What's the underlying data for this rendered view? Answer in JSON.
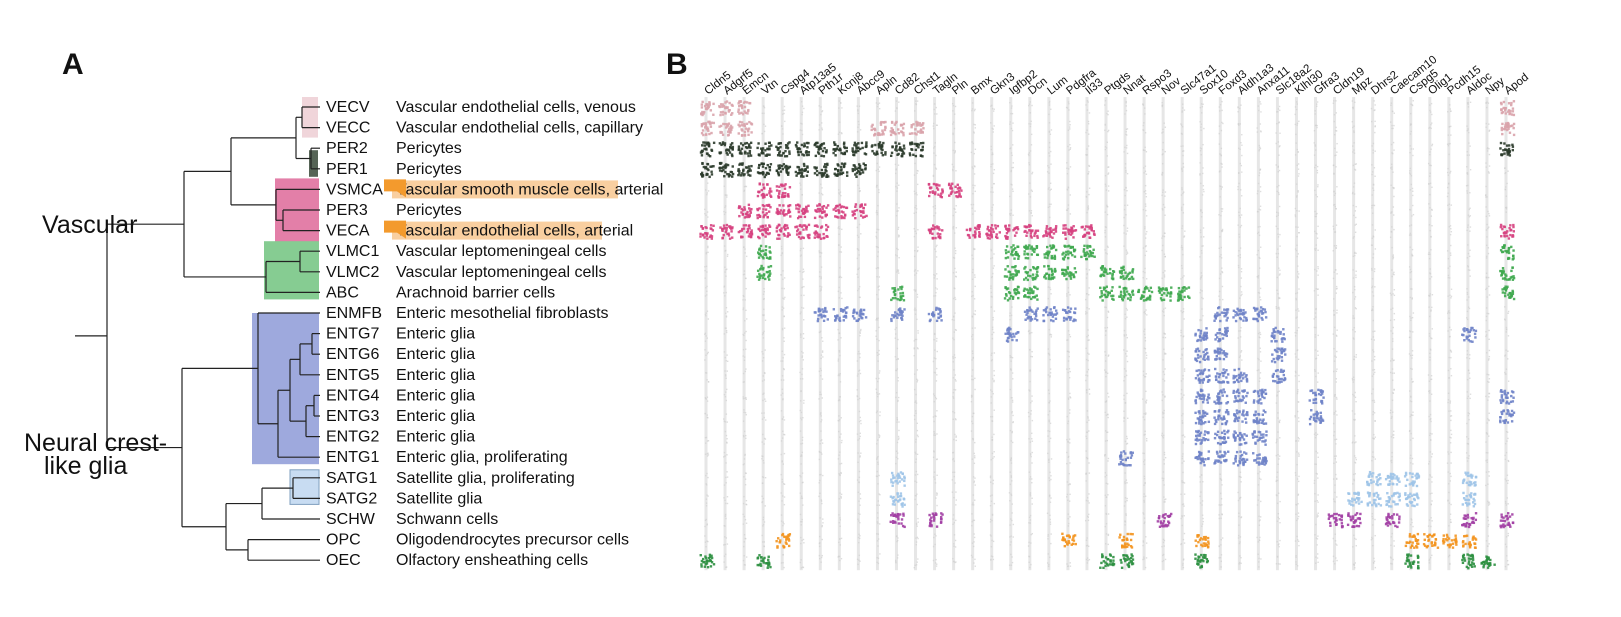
{
  "panels": {
    "a": "A",
    "b": "B"
  },
  "groups": [
    {
      "id": "vascular",
      "lines": [
        "Vascular"
      ]
    },
    {
      "id": "neural",
      "lines": [
        "Neural crest-",
        "like glia"
      ]
    }
  ],
  "colors": {
    "venous_capillary": "#d9a3ab",
    "pericyte_dark": "#2a3a2a",
    "arterial": "#d6417f",
    "leptomeningeal": "#3fa84f",
    "enteric": "#6f83c8",
    "satellite": "#9ec4e8",
    "schwann": "#a23fa4",
    "opc": "#f3941e",
    "oec": "#2b8f3f",
    "grey": "#d0d0d0",
    "highlight": "#f9cfa0",
    "marker": "#f39a2d"
  },
  "rows": [
    {
      "code": "VECV",
      "desc": "Vascular endothelial cells, venous",
      "color": "venous_capillary"
    },
    {
      "code": "VECC",
      "desc": "Vascular endothelial cells, capillary",
      "color": "venous_capillary"
    },
    {
      "code": "PER2",
      "desc": "Pericytes",
      "color": "pericyte_dark"
    },
    {
      "code": "PER1",
      "desc": "Pericytes",
      "color": "pericyte_dark"
    },
    {
      "code": "VSMCA",
      "desc": "Vascular smooth muscle cells",
      "desc_suffix": ", arterial",
      "highlight": true,
      "color": "arterial"
    },
    {
      "code": "PER3",
      "desc": "Pericytes",
      "color": "arterial"
    },
    {
      "code": "VECA",
      "desc": "Vascular endothelial cells",
      "desc_suffix": ", arterial",
      "highlight": true,
      "color": "arterial"
    },
    {
      "code": "VLMC1",
      "desc": "Vascular leptomeningeal cells",
      "color": "leptomeningeal"
    },
    {
      "code": "VLMC2",
      "desc": "Vascular leptomeningeal cells",
      "color": "leptomeningeal"
    },
    {
      "code": "ABC",
      "desc": "Arachnoid barrier cells",
      "color": "leptomeningeal"
    },
    {
      "code": "ENMFB",
      "desc": "Enteric mesothelial fibroblasts",
      "color": "enteric"
    },
    {
      "code": "ENTG7",
      "desc": "Enteric glia",
      "color": "enteric"
    },
    {
      "code": "ENTG6",
      "desc": "Enteric glia",
      "color": "enteric"
    },
    {
      "code": "ENTG5",
      "desc": "Enteric glia",
      "color": "enteric"
    },
    {
      "code": "ENTG4",
      "desc": "Enteric glia",
      "color": "enteric"
    },
    {
      "code": "ENTG3",
      "desc": "Enteric glia",
      "color": "enteric"
    },
    {
      "code": "ENTG2",
      "desc": "Enteric glia",
      "color": "enteric"
    },
    {
      "code": "ENTG1",
      "desc": "Enteric glia, proliferating",
      "color": "enteric"
    },
    {
      "code": "SATG1",
      "desc": "Satellite glia, proliferating",
      "color": "satellite"
    },
    {
      "code": "SATG2",
      "desc": "Satellite glia",
      "color": "satellite"
    },
    {
      "code": "SCHW",
      "desc": "Schwann cells",
      "color": "schwann"
    },
    {
      "code": "OPC",
      "desc": "Oligodendrocytes precursor cells",
      "color": "opc"
    },
    {
      "code": "OEC",
      "desc": "Olfactory ensheathing cells",
      "color": "oec"
    }
  ],
  "genes": [
    "Cldn5",
    "Adgrf5",
    "Emcn",
    "Vtn",
    "Cspg4",
    "Atp13a5",
    "Pth1r",
    "Kcnj8",
    "Abcc9",
    "Apln",
    "Cd82",
    "Chst1",
    "Tagln",
    "Pln",
    "Bmx",
    "Gkn3",
    "Igfbp2",
    "Dcn",
    "Lum",
    "Pdgfra",
    "Il33",
    "Ptgds",
    "Nnat",
    "Rspo3",
    "Nov",
    "Slc47a1",
    "Sox10",
    "Foxd3",
    "Aldh1a3",
    "Anxa11",
    "Slc18a2",
    "Klhl30",
    "Gfra3",
    "Cldn19",
    "Mpz",
    "Dhrs2",
    "Caecam10",
    "Cspg5",
    "Olig1",
    "Pcdh15",
    "Aldoc",
    "Npy",
    "Apod"
  ],
  "expression": {
    "VECV": [
      0,
      1,
      2,
      42
    ],
    "VECC": [
      0,
      1,
      2,
      9,
      10,
      11,
      42
    ],
    "PER2": [
      0,
      1,
      2,
      3,
      4,
      5,
      6,
      7,
      8,
      9,
      10,
      11,
      42
    ],
    "PER1": [
      0,
      1,
      2,
      3,
      4,
      5,
      6,
      7,
      8
    ],
    "VSMCA": [
      3,
      4,
      12,
      13
    ],
    "PER3": [
      2,
      3,
      4,
      5,
      6,
      7,
      8
    ],
    "VECA": [
      0,
      1,
      2,
      3,
      4,
      5,
      6,
      12,
      14,
      15,
      16,
      17,
      18,
      19,
      20,
      42
    ],
    "VLMC1": [
      3,
      16,
      17,
      18,
      19,
      20,
      42
    ],
    "VLMC2": [
      3,
      16,
      17,
      18,
      19,
      21,
      22,
      42
    ],
    "ABC": [
      10,
      16,
      17,
      21,
      22,
      23,
      24,
      25,
      42
    ],
    "ENMFB": [
      6,
      7,
      8,
      10,
      12,
      17,
      18,
      19,
      27,
      28,
      29
    ],
    "ENTG7": [
      16,
      26,
      27,
      30,
      40
    ],
    "ENTG6": [
      26,
      27,
      30
    ],
    "ENTG5": [
      26,
      27,
      28,
      30
    ],
    "ENTG4": [
      26,
      27,
      28,
      29,
      32,
      42
    ],
    "ENTG3": [
      26,
      27,
      28,
      29,
      32,
      42
    ],
    "ENTG2": [
      26,
      27,
      28,
      29
    ],
    "ENTG1": [
      22,
      26,
      27,
      28,
      29
    ],
    "SATG1": [
      10,
      35,
      36,
      37,
      40
    ],
    "SATG2": [
      10,
      34,
      35,
      36,
      37,
      40
    ],
    "SCHW": [
      10,
      12,
      24,
      33,
      34,
      36,
      40,
      42
    ],
    "OPC": [
      4,
      19,
      22,
      26,
      37,
      38,
      39,
      40
    ],
    "OEC": [
      0,
      3,
      21,
      22,
      26,
      37,
      40,
      41
    ]
  }
}
